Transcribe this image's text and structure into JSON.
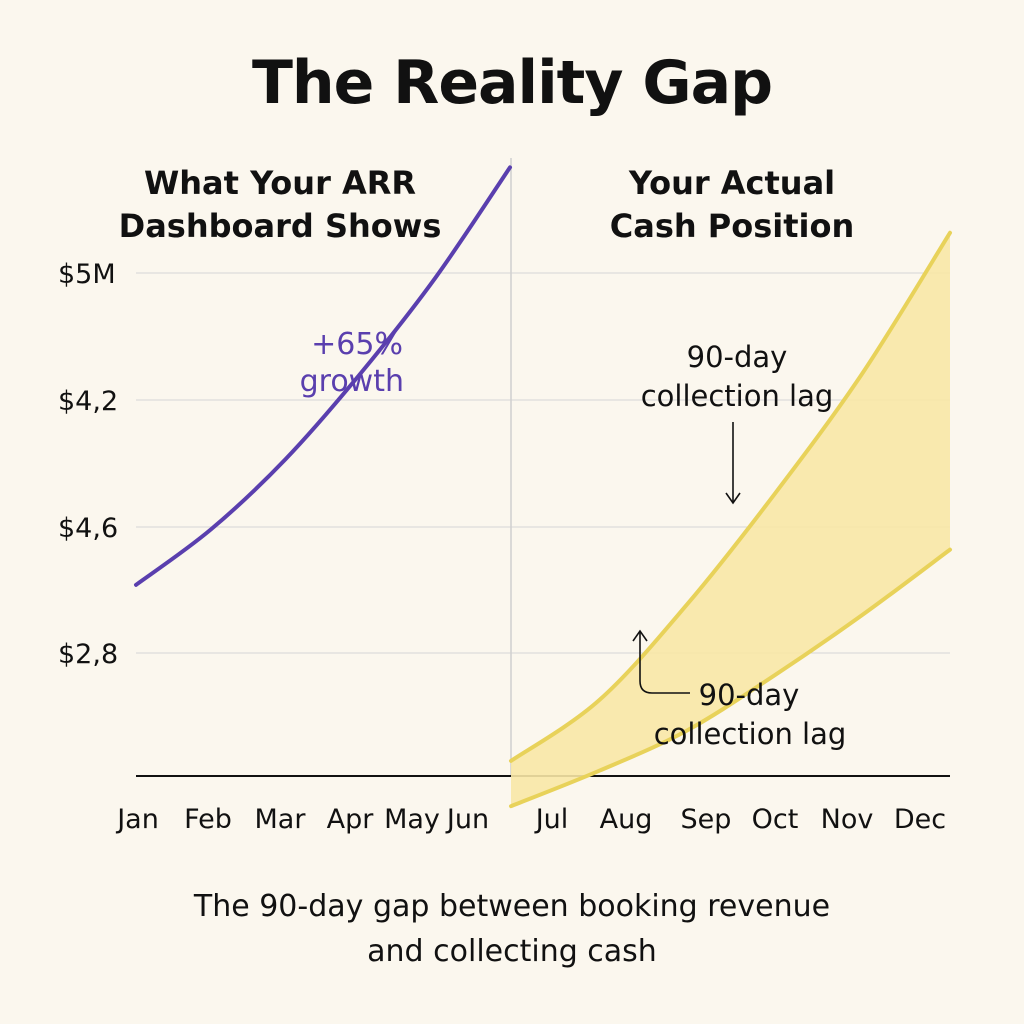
{
  "title": "The Reality Gap",
  "panels": {
    "left_title": [
      "What Your ARR",
      "Dashboard Shows"
    ],
    "right_title": [
      "Your Actual",
      "Cash Position"
    ]
  },
  "annotations": {
    "growth": [
      "+65%",
      "growth"
    ],
    "upper_lag": [
      "90-day",
      "collection  lag"
    ],
    "lower_lag": [
      "90-day",
      "collection  lag"
    ]
  },
  "footer": [
    "The 90-day gap between booking revenue",
    "and collecting cash"
  ],
  "colors": {
    "background": "#fbf7ee",
    "arr_line": "#5a3fae",
    "cash_line": "#e8d25a",
    "gap_fill": "#f8e7a6",
    "grid": "#d6d6d6"
  },
  "chart_data": {
    "type": "line",
    "y_tick_labels": [
      "$5M",
      "$4,2",
      "$4,6",
      "$2,8"
    ],
    "x_tick_labels": [
      "Jan",
      "Feb",
      "Mar",
      "Apr",
      "May",
      "Jun",
      "Jul",
      "Aug",
      "Sep",
      "Oct",
      "Nov",
      "Dec"
    ],
    "grid": true,
    "series": [
      {
        "color": "#5a3fae",
        "x": [
          "Jan",
          "Feb",
          "Mar",
          "Apr",
          "May",
          "Jun"
        ],
        "values": [
          0.38,
          0.49,
          0.63,
          0.8,
          0.99,
          1.21
        ]
      },
      {
        "color": "#e8d25a",
        "x": [
          "Jul",
          "Aug",
          "Sep",
          "Oct",
          "Nov",
          "Dec"
        ],
        "values": [
          0.03,
          0.15,
          0.34,
          0.56,
          0.8,
          1.08
        ]
      },
      {
        "color": "#e8d25a",
        "x": [
          "Jul",
          "Aug",
          "Sep",
          "Oct",
          "Nov",
          "Dec"
        ],
        "values": [
          -0.06,
          0.01,
          0.09,
          0.2,
          0.32,
          0.45
        ]
      }
    ]
  }
}
